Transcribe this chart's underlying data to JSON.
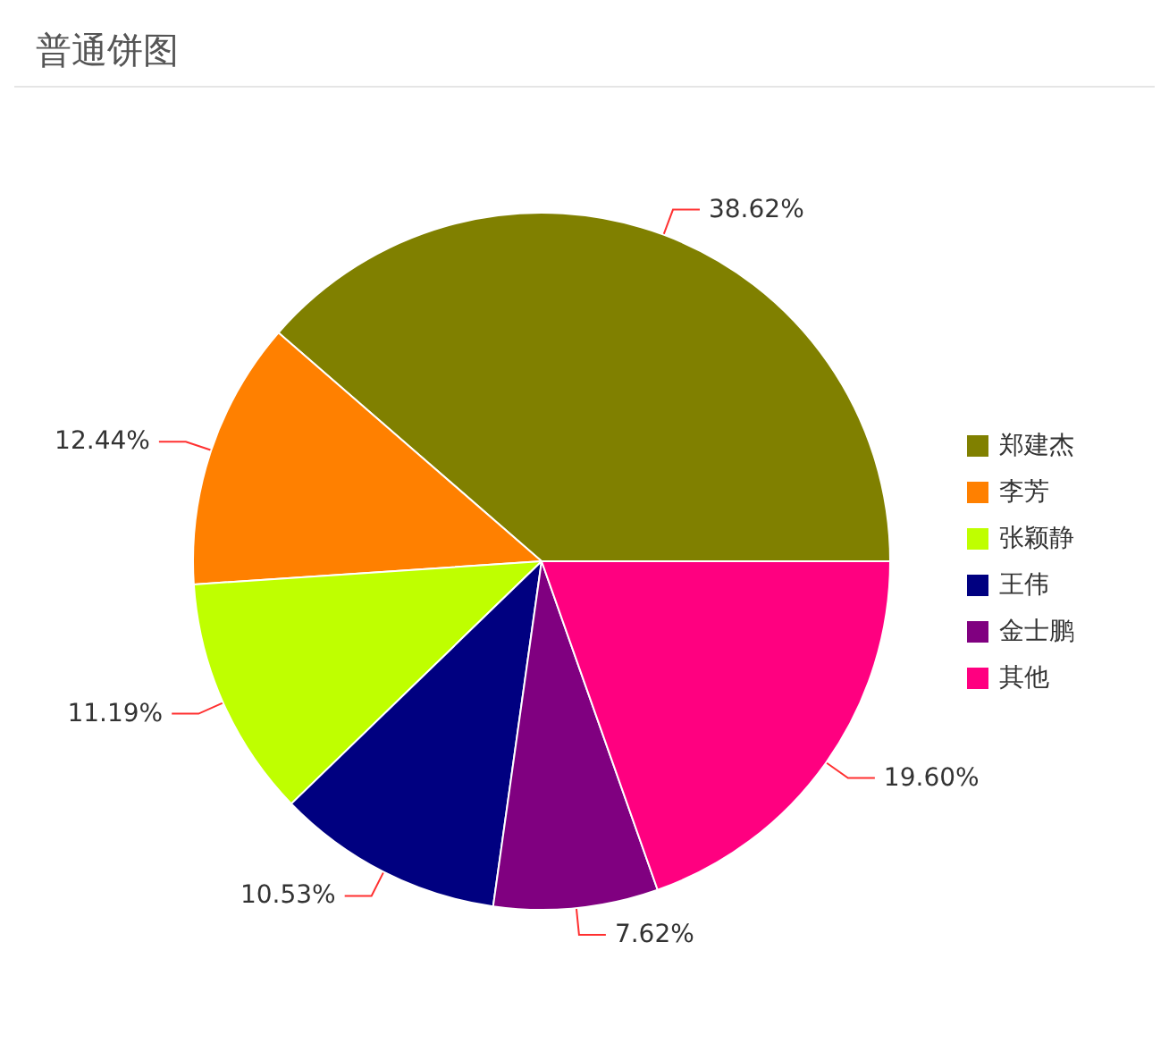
{
  "chart_data": {
    "type": "pie",
    "title": "普通饼图",
    "categories": [
      "郑建杰",
      "李芳",
      "张颖静",
      "王伟",
      "金士鹏",
      "其他"
    ],
    "values": [
      38.62,
      12.44,
      11.19,
      10.53,
      7.62,
      19.6
    ],
    "value_labels": [
      "38.62%",
      "12.44%",
      "11.19%",
      "10.53%",
      "7.62%",
      "19.60%"
    ],
    "colors": [
      "#808000",
      "#ff8000",
      "#bfff00",
      "#000080",
      "#800080",
      "#ff0080"
    ],
    "legend": "right"
  }
}
